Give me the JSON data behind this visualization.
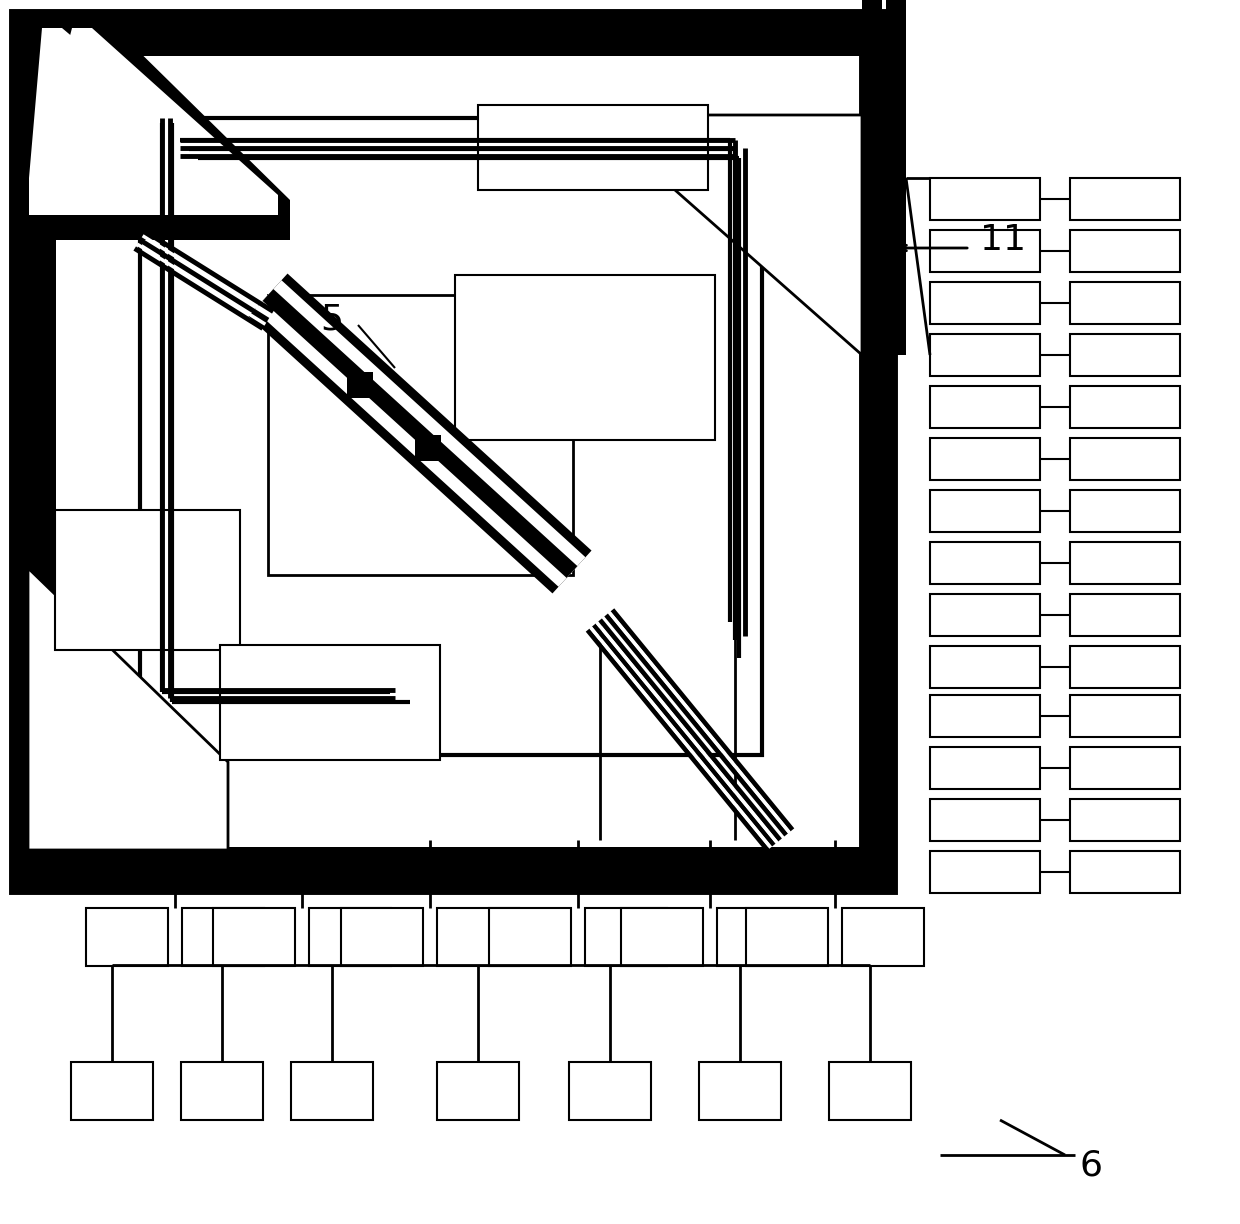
{
  "bg_color": "#ffffff",
  "black": "#000000",
  "white": "#ffffff",
  "label_5": "5",
  "label_6": "6",
  "label_11": "11",
  "figw": 12.4,
  "figh": 12.24,
  "dpi": 100
}
